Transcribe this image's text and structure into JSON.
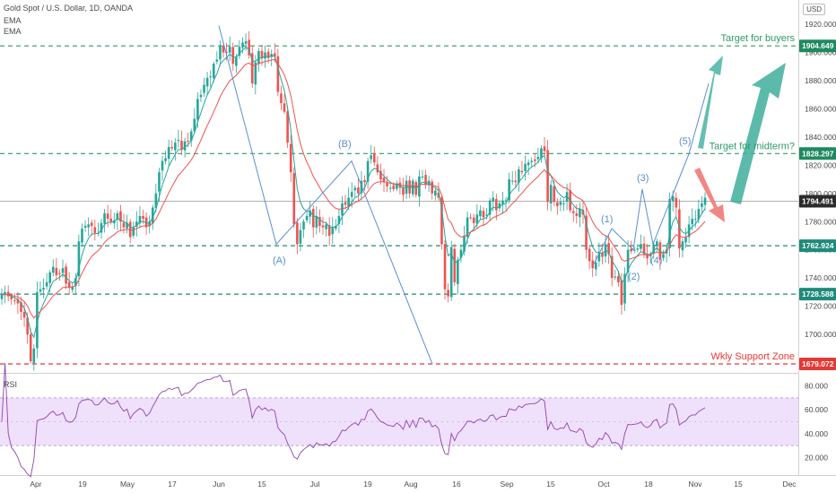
{
  "header": {
    "symbol": "Gold Spot / U.S. Dollar, 1D, OANDA",
    "ema1": "EMA",
    "ema2": "EMA",
    "currency": "USD",
    "rsi_label": "RSI"
  },
  "colors": {
    "up": "#26a69a",
    "down": "#ef5350",
    "ema_fast": "#26a69a",
    "ema_slow": "#ef5350",
    "rsi_line": "#8e44ad",
    "rsi_band": "#efe0fb",
    "wave_line": "#5b8fd0",
    "green_level": "#2e9b6a",
    "teal_level": "#1f8a7a",
    "red_level": "#e53935"
  },
  "price_axis": {
    "ticks": [
      "1920.000",
      "1900.000",
      "1880.000",
      "1860.000",
      "1840.000",
      "1820.000",
      "1800.000",
      "1780.000",
      "1760.000",
      "1740.000",
      "1720.000",
      "1700.000"
    ],
    "tick_values": [
      1920,
      1900,
      1880,
      1860,
      1840,
      1820,
      1800,
      1780,
      1760,
      1740,
      1720,
      1700
    ]
  },
  "rsi_axis": {
    "ticks": [
      "80.000",
      "60.000",
      "40.000",
      "20.000"
    ],
    "tick_values": [
      80,
      60,
      40,
      20
    ]
  },
  "time_axis": {
    "labels": [
      "Apr",
      "19",
      "May",
      "17",
      "Jun",
      "15",
      "Jul",
      "19",
      "Aug",
      "16",
      "Sep",
      "15",
      "Oct",
      "18",
      "Nov",
      "15",
      "Dec"
    ]
  },
  "levels": [
    {
      "value": 1904.649,
      "label": "1904.649",
      "annotation": "Target for buyers",
      "style": "green"
    },
    {
      "value": 1828.297,
      "label": "1828.297",
      "annotation": "Target for midterm?",
      "style": "green"
    },
    {
      "value": 1794.491,
      "label": "1794.491",
      "annotation": "",
      "style": "current"
    },
    {
      "value": 1762.924,
      "label": "1762.924",
      "annotation": "",
      "style": "teal"
    },
    {
      "value": 1728.588,
      "label": "1728.588",
      "annotation": "",
      "style": "teal"
    },
    {
      "value": 1679.072,
      "label": "1679.072",
      "annotation": "Wkly Support Zone",
      "style": "red"
    }
  ],
  "waves": [
    "(A)",
    "(B)",
    "(1)",
    "(2)",
    "(3)",
    "(4)",
    "(5)"
  ],
  "chart_data": {
    "type": "candlestick",
    "instrument": "Gold Spot / U.S. Dollar, 1D, OANDA",
    "closes": [
      1728,
      1730,
      1727,
      1725,
      1724,
      1722,
      1716,
      1712,
      1700,
      1681,
      1690,
      1730,
      1732,
      1733,
      1737,
      1744,
      1748,
      1742,
      1743,
      1747,
      1736,
      1733,
      1734,
      1740,
      1766,
      1775,
      1777,
      1778,
      1777,
      1772,
      1772,
      1779,
      1786,
      1782,
      1780,
      1781,
      1786,
      1780,
      1776,
      1779,
      1769,
      1776,
      1780,
      1784,
      1782,
      1776,
      1780,
      1790,
      1800,
      1815,
      1823,
      1825,
      1833,
      1832,
      1836,
      1838,
      1831,
      1837,
      1837,
      1844,
      1853,
      1867,
      1870,
      1877,
      1882,
      1883,
      1892,
      1895,
      1905,
      1900,
      1900,
      1904,
      1892,
      1897,
      1904,
      1907,
      1908,
      1898,
      1878,
      1893,
      1901,
      1896,
      1900,
      1896,
      1899,
      1897,
      1872,
      1864,
      1858,
      1836,
      1815,
      1778,
      1764,
      1774,
      1780,
      1784,
      1788,
      1776,
      1784,
      1777,
      1776,
      1778,
      1770,
      1776,
      1777,
      1784,
      1793,
      1792,
      1797,
      1801,
      1804,
      1800,
      1809,
      1808,
      1823,
      1827,
      1822,
      1815,
      1810,
      1808,
      1805,
      1804,
      1803,
      1807,
      1804,
      1799,
      1809,
      1800,
      1809,
      1799,
      1812,
      1812,
      1806,
      1809,
      1800,
      1802,
      1797,
      1764,
      1732,
      1727,
      1762,
      1737,
      1753,
      1760,
      1770,
      1783,
      1783,
      1779,
      1785,
      1788,
      1783,
      1785,
      1795,
      1797,
      1788,
      1793,
      1795,
      1795,
      1810,
      1809,
      1808,
      1817,
      1815,
      1821,
      1822,
      1823,
      1823,
      1826,
      1832,
      1830,
      1794,
      1806,
      1794,
      1791,
      1794,
      1793,
      1801,
      1788,
      1786,
      1784,
      1789,
      1785,
      1760,
      1752,
      1747,
      1751,
      1758,
      1755,
      1764,
      1757,
      1740,
      1741,
      1737,
      1721,
      1743,
      1760,
      1759,
      1760,
      1761,
      1764,
      1757,
      1754,
      1757,
      1764,
      1766,
      1753,
      1757,
      1760,
      1796,
      1798,
      1790,
      1761,
      1766,
      1769,
      1778,
      1782,
      1782,
      1789,
      1793,
      1797
    ]
  }
}
